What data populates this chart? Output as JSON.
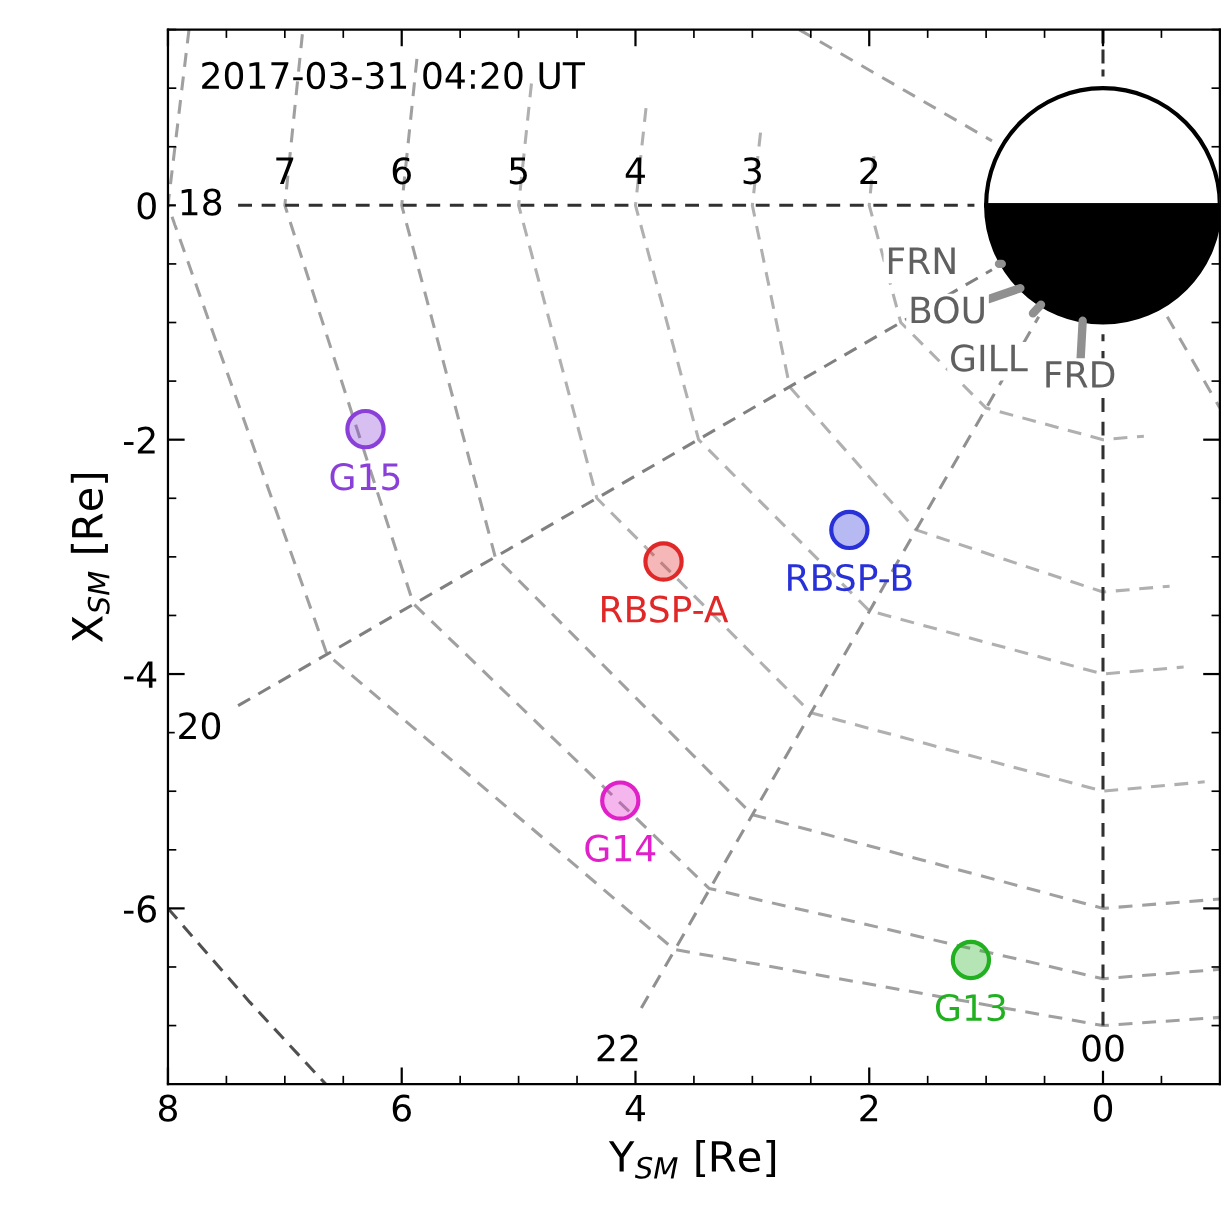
{
  "chart_data": {
    "type": "scatter",
    "title": "2017-03-31 04:20 UT",
    "xlabel": "Y$_{SM}$ [Re]",
    "ylabel": "X$_{SM}$ [Re]",
    "xlim": [
      8,
      -1
    ],
    "ylim": [
      -7.5,
      1.5
    ],
    "xticks": [
      8,
      6,
      4,
      2,
      0
    ],
    "yticks": [
      0,
      -2,
      -4,
      -6
    ],
    "grid": false,
    "series": [
      {
        "type": "line",
        "line_style": "dashed",
        "color": "#b0b0b0",
        "x": [
          1.96,
          2,
          1.73,
          1,
          0,
          -0.35
        ],
        "values": [
          0.42,
          0,
          -1,
          -1.73,
          -2,
          -1.97
        ]
      },
      {
        "type": "line",
        "line_style": "dashed",
        "color": "#b0b0b0",
        "x": [
          2.93,
          3,
          2.68,
          1.6,
          0,
          -0.57
        ],
        "values": [
          0.62,
          0,
          -1.55,
          -2.77,
          -3.3,
          -3.25
        ]
      },
      {
        "type": "line",
        "line_style": "dashed",
        "color": "#b0b0b0",
        "x": [
          3.91,
          4,
          3.46,
          2,
          0,
          -0.69
        ],
        "values": [
          0.83,
          0,
          -2,
          -3.46,
          -4,
          -3.94
        ]
      },
      {
        "type": "line",
        "line_style": "dashed",
        "color": "#b0b0b0",
        "x": [
          4.89,
          5,
          4.33,
          2.5,
          0,
          -0.87
        ],
        "values": [
          1.04,
          0,
          -2.5,
          -4.33,
          -5,
          -4.92
        ]
      },
      {
        "type": "line",
        "line_style": "dashed",
        "color": "#a0a0a0",
        "x": [
          5.87,
          6,
          5.2,
          3,
          0,
          -1
        ],
        "values": [
          1.25,
          0,
          -3,
          -5.2,
          -6,
          -5.92
        ]
      },
      {
        "type": "line",
        "line_style": "dashed",
        "color": "#a0a0a0",
        "x": [
          6.85,
          7,
          5.9,
          3.37,
          0,
          -1
        ],
        "values": [
          1.46,
          0,
          -3.4,
          -5.83,
          -6.6,
          -6.52
        ]
      },
      {
        "type": "line",
        "line_style": "dashed",
        "color": "#a0a0a0",
        "x": [
          7.82,
          8,
          6.64,
          3.67,
          0,
          -1
        ],
        "values": [
          1.5,
          0,
          -3.83,
          -6.35,
          -7.0,
          -6.93
        ]
      },
      {
        "type": "line",
        "line_style": "dashed",
        "color": "#505050",
        "x": [
          8,
          7.3,
          6.65
        ],
        "values": [
          -6,
          -6.8,
          -7.5
        ]
      },
      {
        "type": "line",
        "line_style": "dashed",
        "color": "#303030",
        "x": [
          7.4,
          1.1
        ],
        "values": [
          0,
          0
        ]
      },
      {
        "type": "line",
        "line_style": "dashed",
        "color": "#808080",
        "x": [
          7.4,
          0.95
        ],
        "values": [
          -4.27,
          -0.55
        ]
      },
      {
        "type": "line",
        "line_style": "dashed",
        "color": "#909090",
        "x": [
          3.95,
          0.55
        ],
        "values": [
          -6.85,
          -0.95
        ]
      },
      {
        "type": "line",
        "line_style": "dashed",
        "color": "#303030",
        "x": [
          0,
          0
        ],
        "values": [
          -7.0,
          -1.1
        ]
      },
      {
        "type": "line",
        "line_style": "dashed",
        "color": "#303030",
        "x": [
          0,
          0
        ],
        "values": [
          1.5,
          1.1
        ]
      },
      {
        "type": "line",
        "line_style": "dashed",
        "color": "#a0a0a0",
        "x": [
          2.6,
          0.95
        ],
        "values": [
          1.5,
          0.55
        ]
      },
      {
        "type": "line",
        "line_style": "dashed",
        "color": "#a0a0a0",
        "x": [
          -0.55,
          -1
        ],
        "values": [
          -0.95,
          -1.73
        ]
      },
      {
        "name": "G15",
        "marker": "circle",
        "color": "#8a3fd8",
        "x": [
          6.31
        ],
        "values": [
          -1.91
        ]
      },
      {
        "name": "RBSP-A",
        "marker": "circle",
        "color": "#e02828",
        "x": [
          3.76
        ],
        "values": [
          -3.04
        ]
      },
      {
        "name": "RBSP-B",
        "marker": "circle",
        "color": "#2830d8",
        "x": [
          2.17
        ],
        "values": [
          -2.77
        ]
      },
      {
        "name": "G14",
        "marker": "circle",
        "color": "#e020c8",
        "x": [
          4.13
        ],
        "values": [
          -5.08
        ]
      },
      {
        "name": "G13",
        "marker": "circle",
        "color": "#20b020",
        "x": [
          1.13
        ],
        "values": [
          -6.44
        ]
      }
    ],
    "annotations": [
      {
        "text": "7",
        "x": 7.0,
        "y": 0
      },
      {
        "text": "6",
        "x": 6.0,
        "y": 0
      },
      {
        "text": "5",
        "x": 5.0,
        "y": 0
      },
      {
        "text": "4",
        "x": 4.0,
        "y": 0
      },
      {
        "text": "3",
        "x": 3.0,
        "y": 0
      },
      {
        "text": "2",
        "x": 2.0,
        "y": 0
      },
      "18",
      "20",
      "22",
      "00",
      "FRN",
      "BOU",
      "GILL",
      "FRD"
    ]
  }
}
